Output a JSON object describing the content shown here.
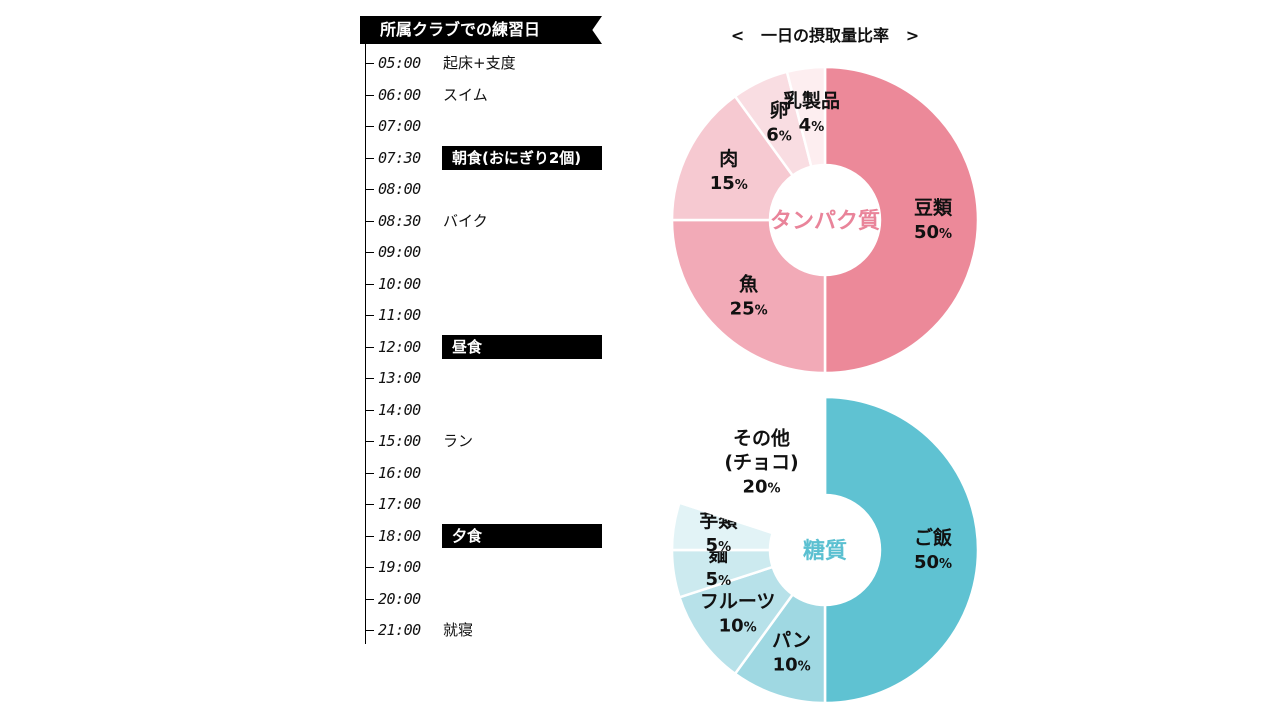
{
  "schedule": {
    "title": "所属クラブでの練習日",
    "rows": [
      {
        "time": "05:00",
        "activity": "起床+支度",
        "meal": false
      },
      {
        "time": "06:00",
        "activity": "スイム",
        "meal": false
      },
      {
        "time": "07:00",
        "activity": "",
        "meal": false
      },
      {
        "time": "07:30",
        "activity": "朝食(おにぎり2個)",
        "meal": true
      },
      {
        "time": "08:00",
        "activity": "",
        "meal": false
      },
      {
        "time": "08:30",
        "activity": "バイク",
        "meal": false
      },
      {
        "time": "09:00",
        "activity": "",
        "meal": false
      },
      {
        "time": "10:00",
        "activity": "",
        "meal": false
      },
      {
        "time": "11:00",
        "activity": "",
        "meal": false
      },
      {
        "time": "12:00",
        "activity": "昼食",
        "meal": true
      },
      {
        "time": "13:00",
        "activity": "",
        "meal": false
      },
      {
        "time": "14:00",
        "activity": "",
        "meal": false
      },
      {
        "time": "15:00",
        "activity": "ラン",
        "meal": false
      },
      {
        "time": "16:00",
        "activity": "",
        "meal": false
      },
      {
        "time": "17:00",
        "activity": "",
        "meal": false
      },
      {
        "time": "18:00",
        "activity": "夕食",
        "meal": true
      },
      {
        "time": "19:00",
        "activity": "",
        "meal": false
      },
      {
        "time": "20:00",
        "activity": "",
        "meal": false
      },
      {
        "time": "21:00",
        "activity": "就寝",
        "meal": false
      }
    ]
  },
  "charts_header": {
    "prev_arrow": "<",
    "title": "一日の摂取量比率",
    "next_arrow": ">"
  },
  "chart_data": [
    {
      "type": "pie",
      "title": "タンパク質",
      "center_label": "タンパク質",
      "center_color": "#e9849a",
      "slices": [
        {
          "label": "豆類",
          "value": 50,
          "display": "50",
          "color": "#ec8999"
        },
        {
          "label": "魚",
          "value": 25,
          "display": "25",
          "color": "#f2aab7"
        },
        {
          "label": "肉",
          "value": 15,
          "display": "15",
          "color": "#f6c9d1"
        },
        {
          "label": "卵",
          "value": 6,
          "display": "6",
          "color": "#f9dde2"
        },
        {
          "label": "乳製品",
          "value": 4,
          "display": "4",
          "color": "#fdeef0"
        }
      ]
    },
    {
      "type": "pie",
      "title": "糖質",
      "center_label": "糖質",
      "center_color": "#5bc0d1",
      "slices": [
        {
          "label": "ご飯",
          "value": 50,
          "display": "50",
          "color": "#5fc2d2"
        },
        {
          "label": "パン",
          "value": 10,
          "display": "10",
          "color": "#9fd8e2"
        },
        {
          "label": "フルーツ",
          "value": 10,
          "display": "10",
          "color": "#b7e1e9"
        },
        {
          "label": "麺",
          "value": 5,
          "display": "5",
          "color": "#cceaef"
        },
        {
          "label": "芋類",
          "value": 5,
          "display": "5",
          "color": "#e2f3f6"
        },
        {
          "label": "その他\n(チョコ)",
          "value": 20,
          "display": "20",
          "color": "#ffffff"
        }
      ]
    }
  ]
}
